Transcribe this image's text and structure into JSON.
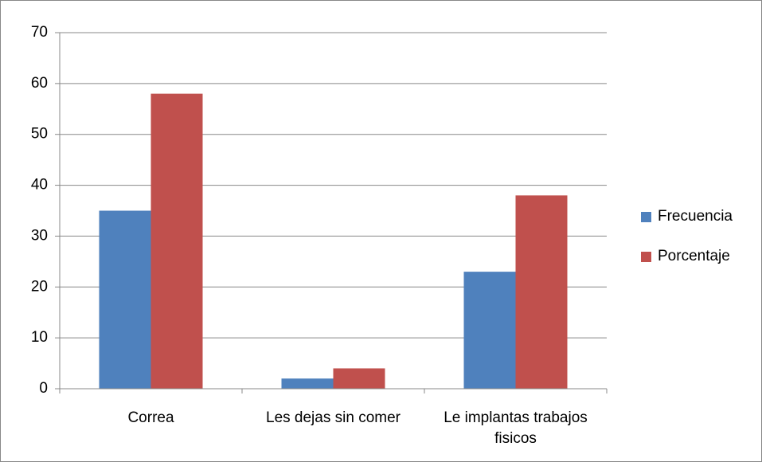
{
  "chart_data": {
    "type": "bar",
    "categories": [
      "Correa",
      "Les dejas sin comer",
      "Le implantas trabajos fisicos"
    ],
    "series": [
      {
        "name": "Frecuencia",
        "color": "#4f81bd",
        "values": [
          35,
          2,
          23
        ]
      },
      {
        "name": "Porcentaje",
        "color": "#c0504d",
        "values": [
          58,
          4,
          38
        ]
      }
    ],
    "ylim": [
      0,
      70
    ],
    "yticks": [
      0,
      10,
      20,
      30,
      40,
      50,
      60,
      70
    ],
    "grid": true,
    "legend": "right"
  }
}
